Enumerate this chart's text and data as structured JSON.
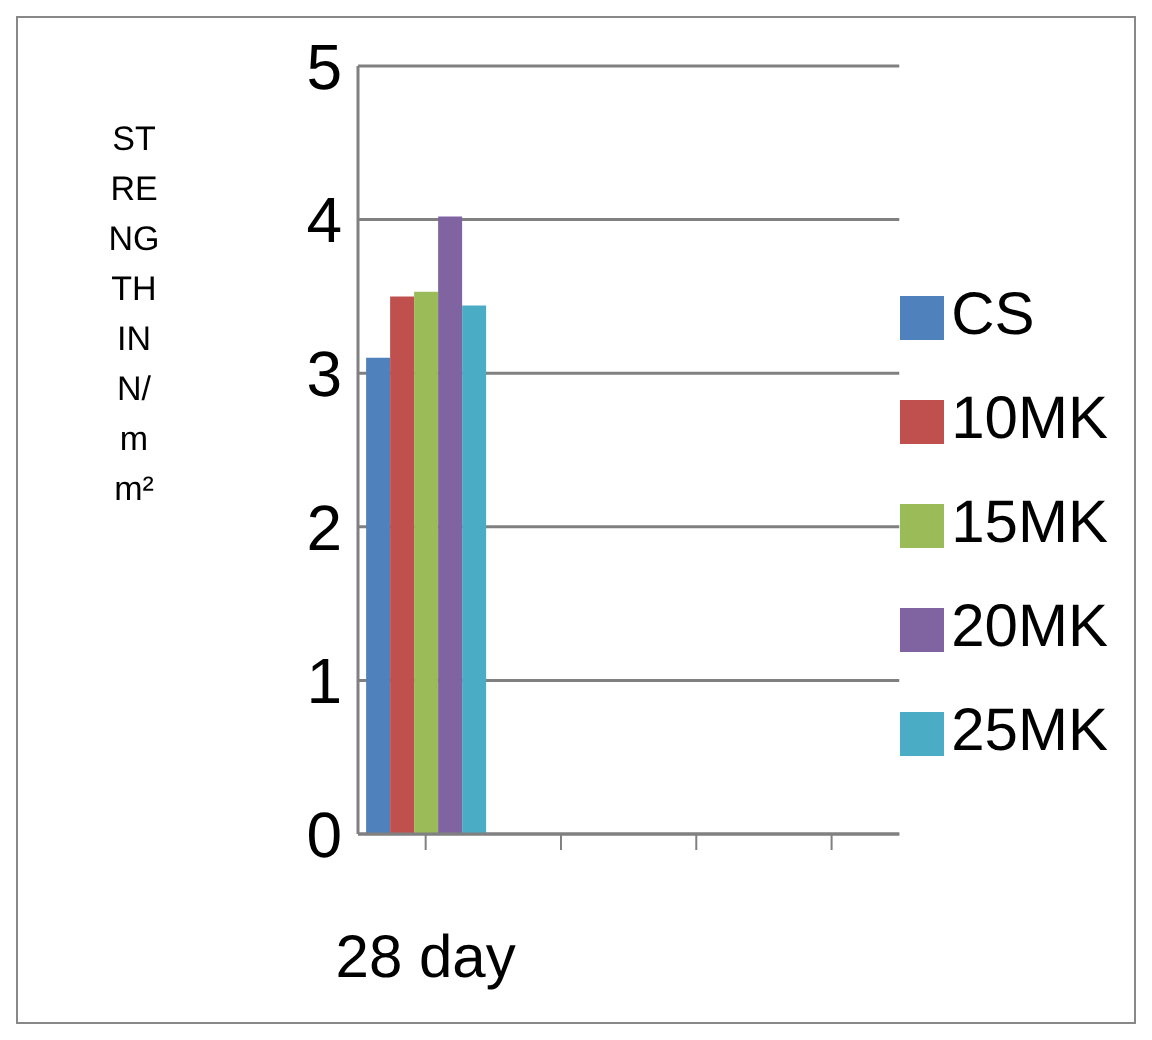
{
  "chart_data": {
    "type": "bar",
    "ylabel": "STRENGTH IN N/mm²",
    "categories": [
      "28 day",
      null,
      null,
      null
    ],
    "series": [
      {
        "name": "CS",
        "color": "#4f81bd",
        "values": [
          3.1,
          null,
          null,
          null
        ]
      },
      {
        "name": "10MK",
        "color": "#c0504d",
        "values": [
          3.5,
          null,
          null,
          null
        ]
      },
      {
        "name": "15MK",
        "color": "#9bbb59",
        "values": [
          3.53,
          null,
          null,
          null
        ]
      },
      {
        "name": "20MK",
        "color": "#8064a2",
        "values": [
          4.02,
          null,
          null,
          null
        ]
      },
      {
        "name": "25MK",
        "color": "#4bacc6",
        "values": [
          3.44,
          null,
          null,
          null
        ]
      }
    ],
    "ylim": [
      0,
      5
    ],
    "yticks": [
      0,
      1,
      2,
      3,
      4,
      5
    ],
    "grid": "y",
    "legend": "right"
  }
}
